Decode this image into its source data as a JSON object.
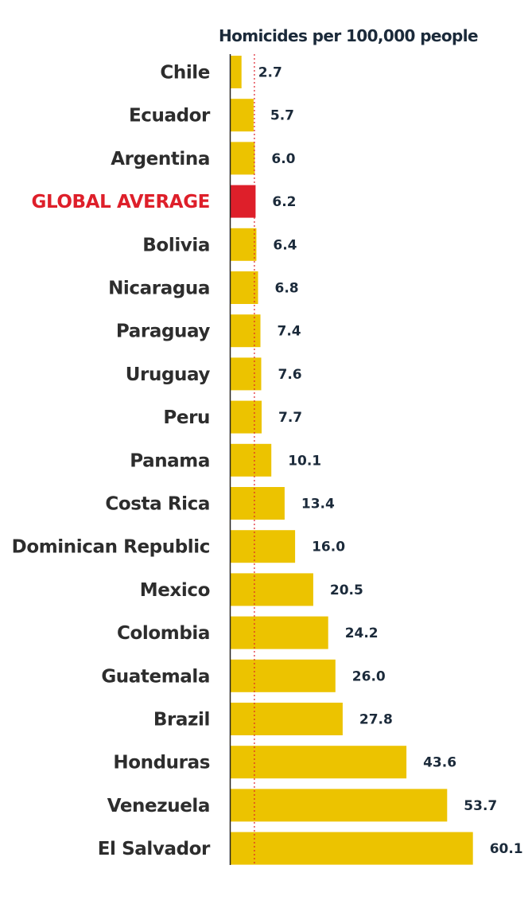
{
  "chart_data": {
    "type": "bar",
    "orientation": "horizontal",
    "title": "Homicides per 100,000 people",
    "xlabel": "",
    "ylabel": "",
    "reference_line": {
      "label": "GLOBAL AVERAGE",
      "value": 6.2
    },
    "categories": [
      "Chile",
      "Ecuador",
      "Argentina",
      "GLOBAL AVERAGE",
      "Bolivia",
      "Nicaragua",
      "Paraguay",
      "Uruguay",
      "Peru",
      "Panama",
      "Costa Rica",
      "Dominican Republic",
      "Mexico",
      "Colombia",
      "Guatemala",
      "Brazil",
      "Honduras",
      "Venezuela",
      "El Salvador"
    ],
    "values": [
      2.7,
      5.7,
      6.0,
      6.2,
      6.4,
      6.8,
      7.4,
      7.6,
      7.7,
      10.1,
      13.4,
      16.0,
      20.5,
      24.2,
      26.0,
      27.8,
      43.6,
      53.7,
      60.1
    ],
    "value_labels": [
      "2.7",
      "5.7",
      "6.0",
      "6.2",
      "6.4",
      "6.8",
      "7.4",
      "7.6",
      "7.7",
      "10.1",
      "13.4",
      "16.0",
      "20.5",
      "24.2",
      "26.0",
      "27.8",
      "43.6",
      "53.7",
      "60.1"
    ],
    "highlight": [
      "GLOBAL AVERAGE"
    ],
    "xlim": [
      0,
      64
    ],
    "grid": false,
    "legend": "none",
    "colors": {
      "bar": "#ecc300",
      "highlight_bar": "#de1f2a",
      "highlight_label": "#de1f2a",
      "label": "#2d2d2d",
      "value": "#1b2a3a",
      "axis": "#222222",
      "reference_line": "#de1f2a"
    }
  }
}
